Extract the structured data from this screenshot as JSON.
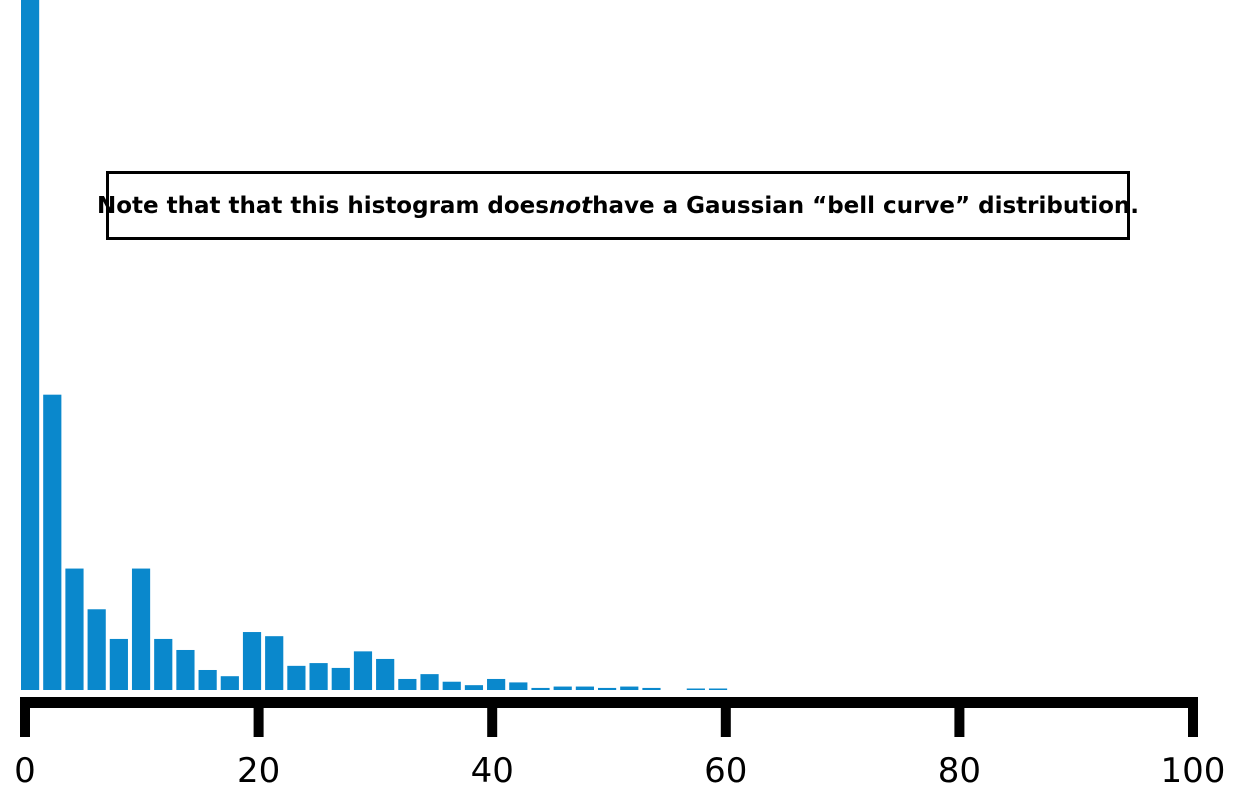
{
  "chart_data": {
    "type": "bar",
    "title": "",
    "xlabel": "",
    "ylabel": "",
    "xlim": [
      0,
      100
    ],
    "bin_width": 1.9,
    "bins": [
      0,
      1.9,
      3.8,
      5.7,
      7.6,
      9.5,
      11.4,
      13.3,
      15.2,
      17.1,
      19.0,
      20.9,
      22.8,
      24.7,
      26.6,
      28.5,
      30.4,
      32.3,
      34.2,
      36.1,
      38.0,
      39.9,
      41.8,
      43.7,
      45.6,
      47.5,
      49.4,
      51.3,
      53.2,
      55.1,
      57.0,
      58.9
    ],
    "values": [
      100,
      42.8,
      17.6,
      11.7,
      7.4,
      17.6,
      7.4,
      5.8,
      2.9,
      2.0,
      8.4,
      7.8,
      3.5,
      3.9,
      3.2,
      5.6,
      4.5,
      1.6,
      2.3,
      1.2,
      0.7,
      1.6,
      1.1,
      0.3,
      0.5,
      0.5,
      0.3,
      0.5,
      0.3,
      0,
      0.2,
      0.2
    ],
    "ylim": [
      0,
      100
    ],
    "x_ticks": [
      "0",
      "20",
      "40",
      "60",
      "80",
      "100"
    ],
    "x_tick_values": [
      0,
      20,
      40,
      60,
      80,
      100
    ],
    "bar_color": "#0a88cc",
    "axis_color": "#000000",
    "grid": false,
    "annotation": {
      "before": "Note that that this histogram does ",
      "emphasis": "not",
      "after": " have a Gaussian “bell curve” distribution."
    }
  }
}
